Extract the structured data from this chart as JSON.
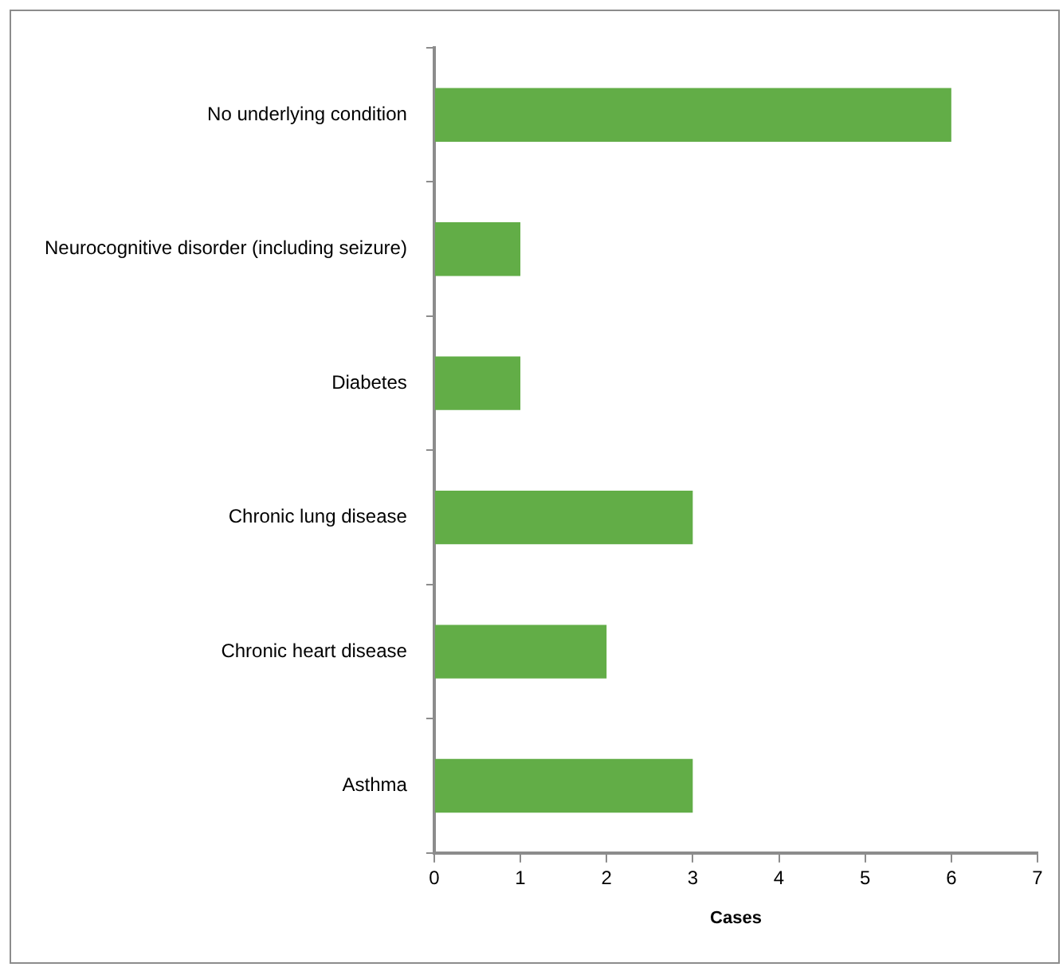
{
  "chart_data": {
    "type": "bar",
    "orientation": "horizontal",
    "xlabel": "Cases",
    "categories": [
      "No underlying condition",
      "Neurocognitive disorder (including seizure)",
      "Diabetes",
      "Chronic lung disease",
      "Chronic heart disease",
      "Asthma"
    ],
    "values": [
      6,
      1,
      1,
      3,
      2,
      3
    ],
    "color": "#62ad47",
    "xlim": [
      0,
      7
    ],
    "xticks": [
      0,
      1,
      2,
      3,
      4,
      5,
      6,
      7
    ],
    "grid": false,
    "legend": false
  }
}
